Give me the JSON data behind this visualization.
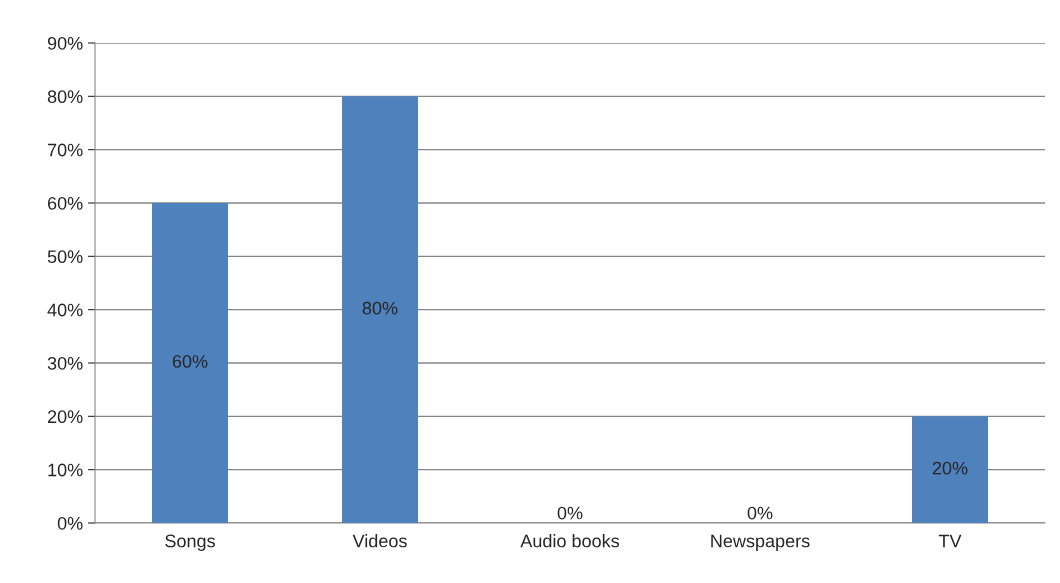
{
  "chart_data": {
    "type": "bar",
    "categories": [
      "Songs",
      "Videos",
      "Audio books",
      "Newspapers",
      "TV"
    ],
    "values": [
      60,
      80,
      0,
      0,
      20
    ],
    "color": "#4f81bd",
    "value_labels": [
      "60%",
      "80%",
      "0%",
      "0%",
      "20%"
    ],
    "ylim": [
      0,
      90
    ],
    "yticks": [
      {
        "value": 0,
        "label": "0%"
      },
      {
        "value": 10,
        "label": "10%"
      },
      {
        "value": 20,
        "label": "20%"
      },
      {
        "value": 30,
        "label": "30%"
      },
      {
        "value": 40,
        "label": "40%"
      },
      {
        "value": 50,
        "label": "50%"
      },
      {
        "value": 60,
        "label": "60%"
      },
      {
        "value": 70,
        "label": "70%"
      },
      {
        "value": 80,
        "label": "80%"
      },
      {
        "value": 90,
        "label": "90%"
      }
    ],
    "grid": "y",
    "legend": false
  }
}
